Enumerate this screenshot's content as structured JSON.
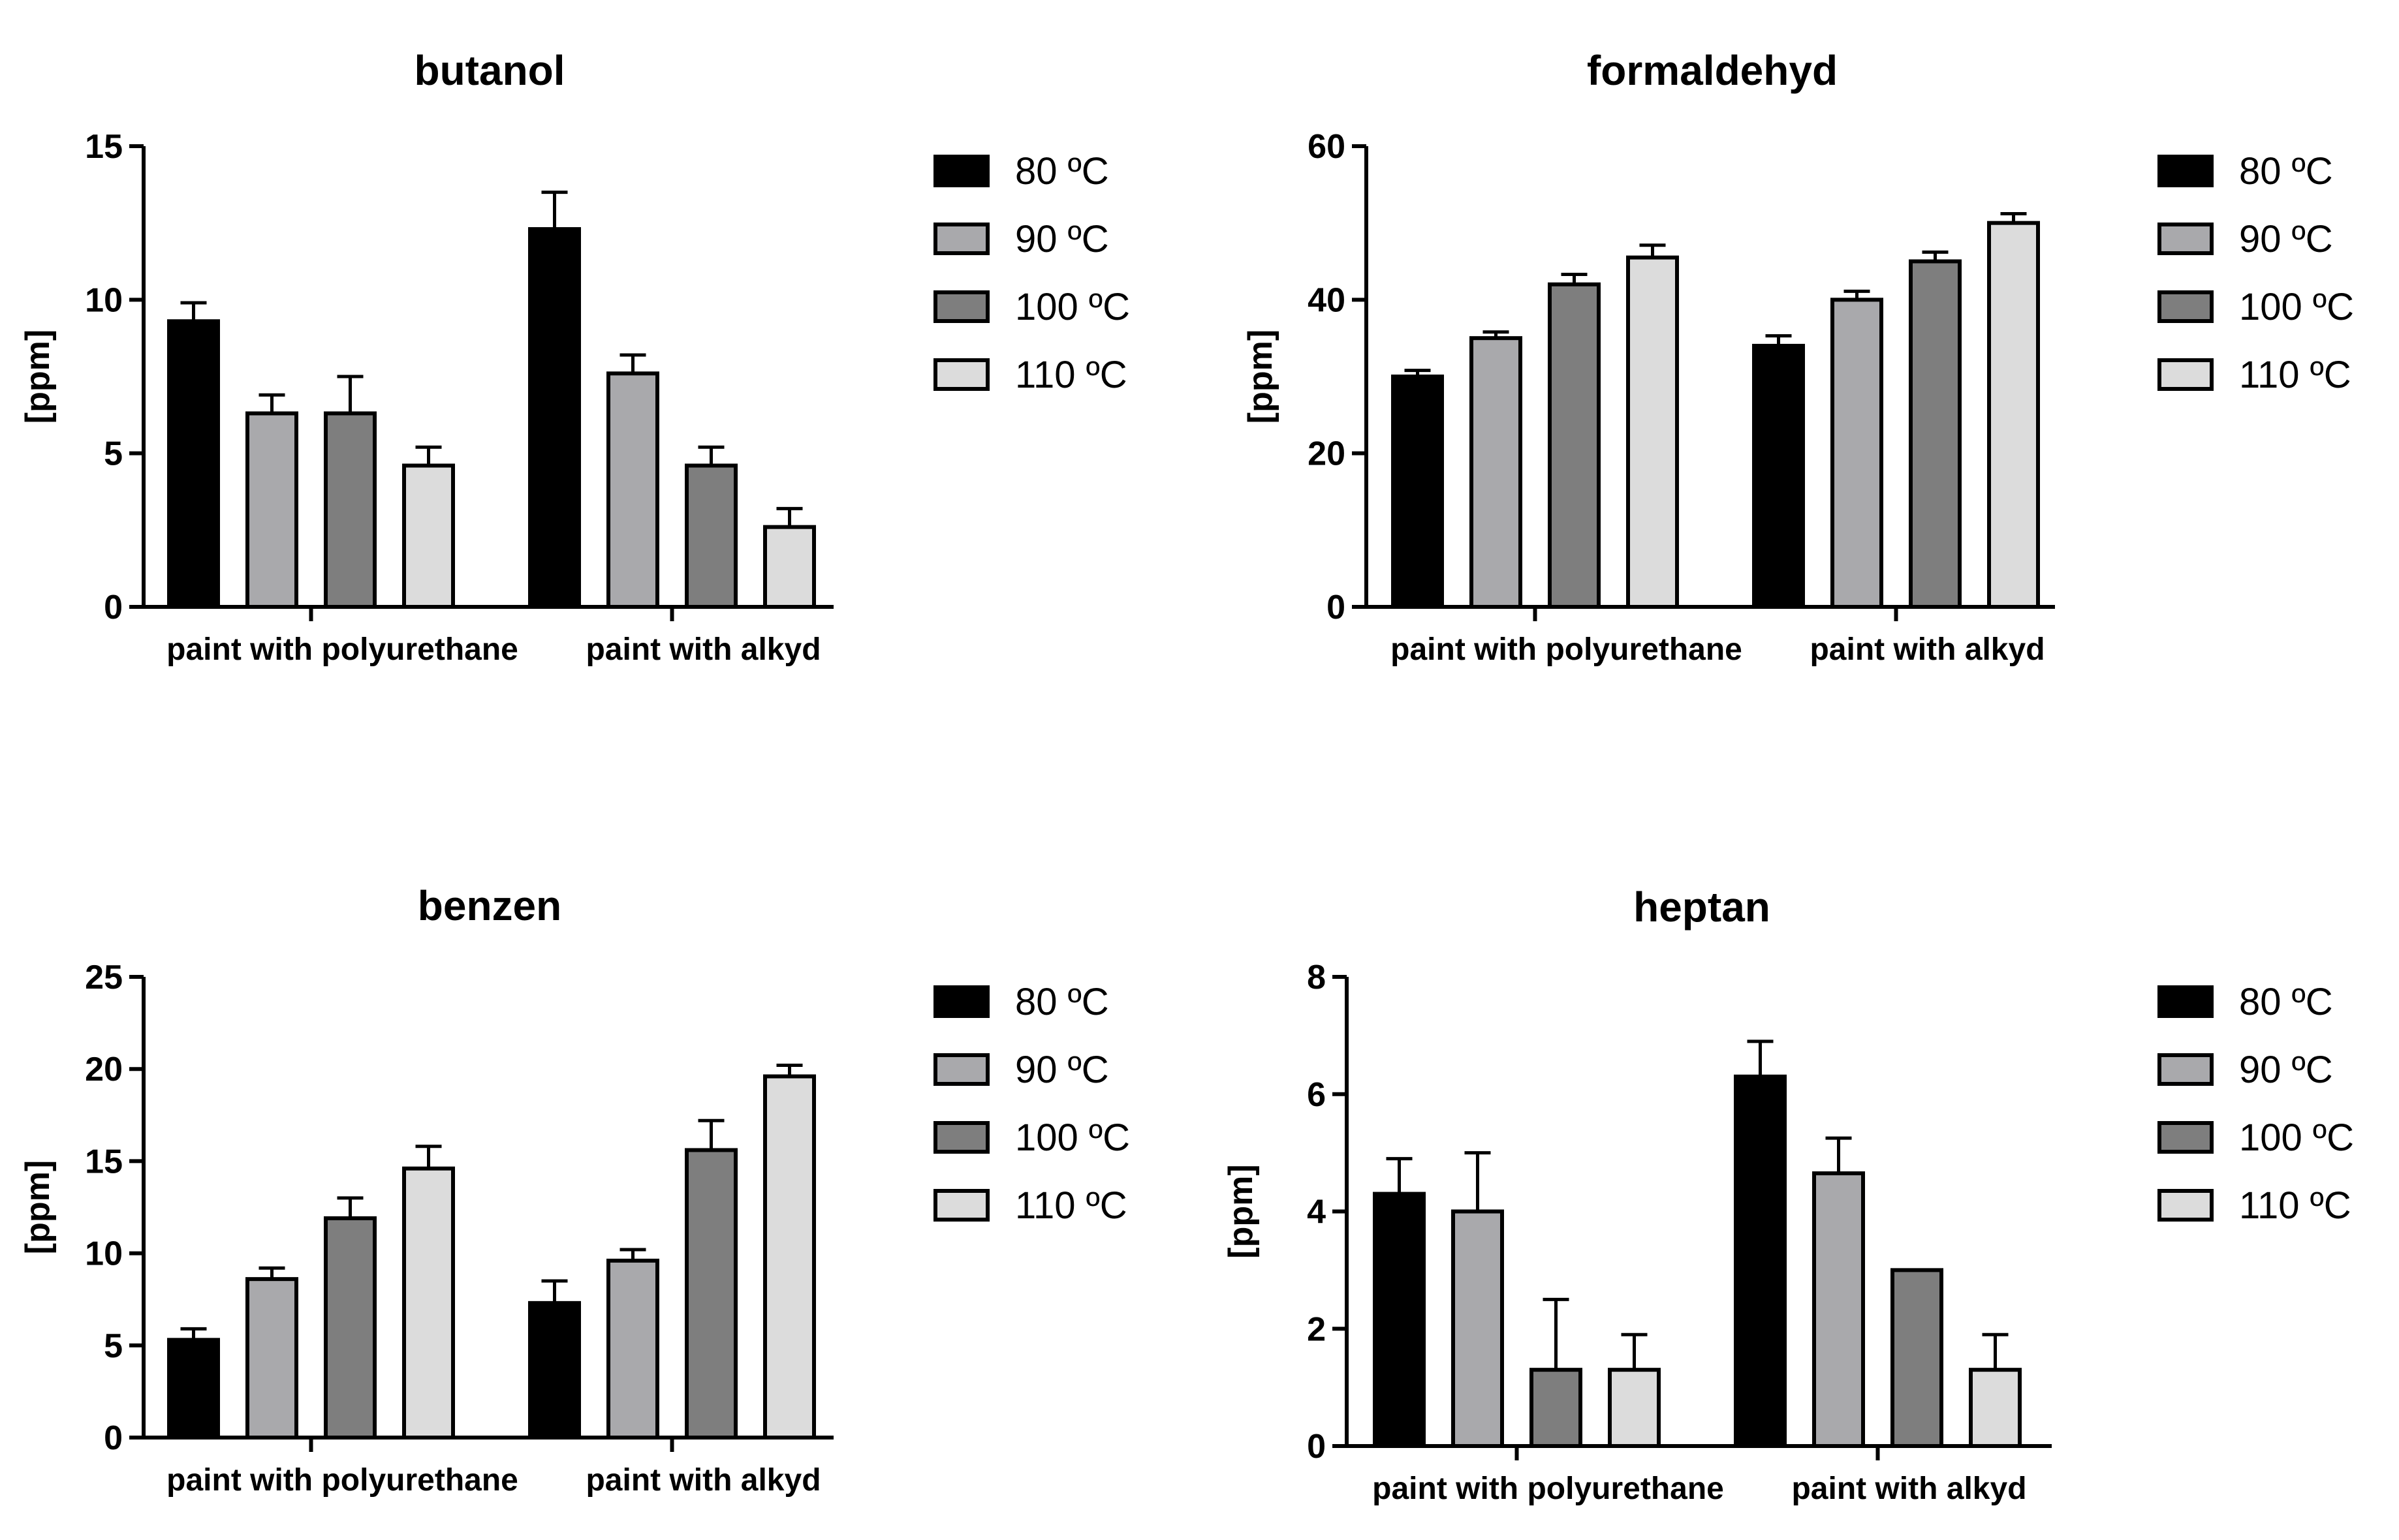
{
  "colors": {
    "series": [
      "#000000",
      "#a9a9ac",
      "#7e7e7e",
      "#dcdcdc"
    ],
    "stroke": "#000000",
    "background": "#ffffff"
  },
  "chart_data": [
    {
      "type": "bar",
      "title": "butanol",
      "ylabel": "[ppm]",
      "xlabel": "",
      "ylim": [
        0,
        15
      ],
      "yticks": [
        "0",
        "5",
        "10",
        "15"
      ],
      "categories": [
        "paint with polyurethane",
        "paint with alkyd"
      ],
      "legend_position": "right",
      "series": [
        {
          "name": "80 ºC",
          "values": [
            9.3,
            12.3
          ],
          "errors": [
            0.6,
            1.2
          ]
        },
        {
          "name": "90 ºC",
          "values": [
            6.3,
            7.6
          ],
          "errors": [
            0.6,
            0.6
          ]
        },
        {
          "name": "100 ºC",
          "values": [
            6.3,
            4.6
          ],
          "errors": [
            1.2,
            0.6
          ]
        },
        {
          "name": "110 ºC",
          "values": [
            4.6,
            2.6
          ],
          "errors": [
            0.6,
            0.6
          ]
        }
      ]
    },
    {
      "type": "bar",
      "title": "formaldehyd",
      "ylabel": "[ppm]",
      "xlabel": "",
      "ylim": [
        0,
        60
      ],
      "yticks": [
        "0",
        "20",
        "40",
        "60"
      ],
      "categories": [
        "paint with polyurethane",
        "paint with alkyd"
      ],
      "legend_position": "right",
      "series": [
        {
          "name": "80 ºC",
          "values": [
            30,
            34
          ],
          "errors": [
            0.8,
            1.3
          ]
        },
        {
          "name": "90 ºC",
          "values": [
            35,
            40
          ],
          "errors": [
            0.8,
            1.1
          ]
        },
        {
          "name": "100 ºC",
          "values": [
            42,
            45
          ],
          "errors": [
            1.3,
            1.2
          ]
        },
        {
          "name": "110 ºC",
          "values": [
            45.5,
            50
          ],
          "errors": [
            1.6,
            1.2
          ]
        }
      ]
    },
    {
      "type": "bar",
      "title": "benzen",
      "ylabel": "[ppm]",
      "xlabel": "",
      "ylim": [
        0,
        25
      ],
      "yticks": [
        "0",
        "5",
        "10",
        "15",
        "20",
        "25"
      ],
      "categories": [
        "paint with polyurethane",
        "paint with alkyd"
      ],
      "legend_position": "right",
      "series": [
        {
          "name": "80 ºC",
          "values": [
            5.3,
            7.3
          ],
          "errors": [
            0.6,
            1.2
          ]
        },
        {
          "name": "90 ºC",
          "values": [
            8.6,
            9.6
          ],
          "errors": [
            0.6,
            0.6
          ]
        },
        {
          "name": "100 ºC",
          "values": [
            11.9,
            15.6
          ],
          "errors": [
            1.1,
            1.6
          ]
        },
        {
          "name": "110 ºC",
          "values": [
            14.6,
            19.6
          ],
          "errors": [
            1.2,
            0.6
          ]
        }
      ]
    },
    {
      "type": "bar",
      "title": "heptan",
      "ylabel": "[ppm]",
      "xlabel": "",
      "ylim": [
        0,
        8
      ],
      "yticks": [
        "0",
        "2",
        "4",
        "6",
        "8"
      ],
      "categories": [
        "paint with polyurethane",
        "paint with alkyd"
      ],
      "legend_position": "right",
      "series": [
        {
          "name": "80 ºC",
          "values": [
            4.3,
            6.3
          ],
          "errors": [
            0.6,
            0.6
          ]
        },
        {
          "name": "90 ºC",
          "values": [
            4.0,
            4.65
          ],
          "errors": [
            1.0,
            0.6
          ]
        },
        {
          "name": "100 ºC",
          "values": [
            1.3,
            3.0
          ],
          "errors": [
            1.2,
            0
          ]
        },
        {
          "name": "110 ºC",
          "values": [
            1.3,
            1.3
          ],
          "errors": [
            0.6,
            0.6
          ]
        }
      ]
    }
  ]
}
